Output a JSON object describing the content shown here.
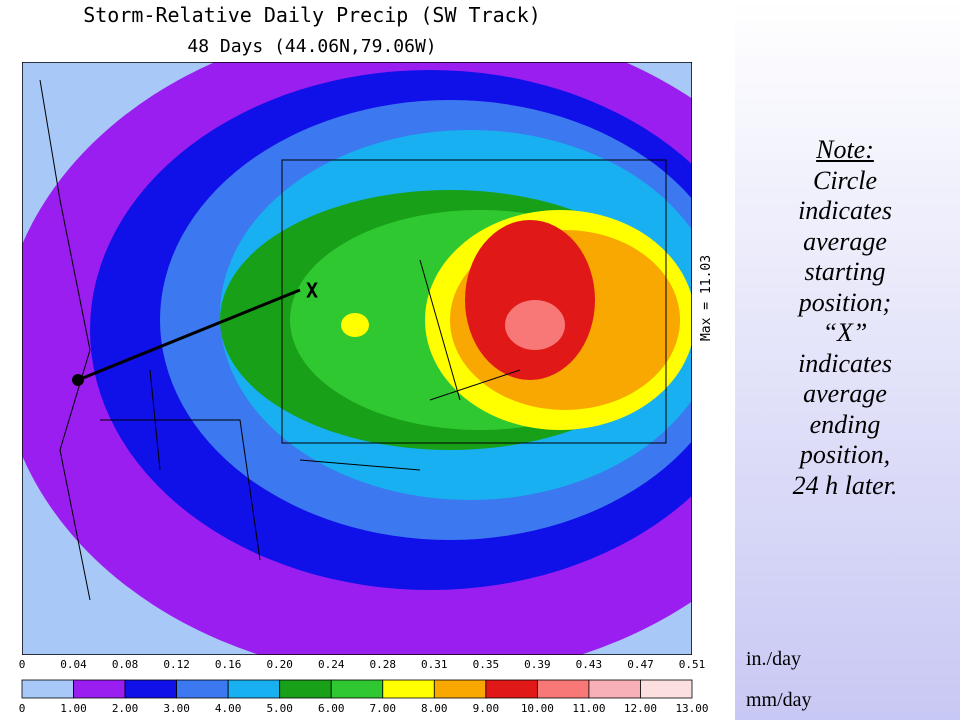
{
  "title": "Storm-Relative Daily Precip (SW Track)",
  "subtitle": "48 Days (44.06N,79.06W)",
  "max_label": "Max =  11.03",
  "end_marker": "X",
  "note": {
    "heading": "Note:",
    "lines": [
      "Circle",
      "indicates",
      "average",
      "starting",
      "position;",
      "“X”",
      "indicates",
      "average",
      "ending",
      "position,",
      "24 h later."
    ]
  },
  "legend": {
    "inch_unit": "in./day",
    "mm_unit": "mm/day",
    "inch_labels": [
      "0",
      "0.04",
      "0.08",
      "0.12",
      "0.16",
      "0.20",
      "0.24",
      "0.28",
      "0.31",
      "0.35",
      "0.39",
      "0.43",
      "0.47",
      "0.51"
    ],
    "mm_labels": [
      "0",
      "1.00",
      "2.00",
      "3.00",
      "4.00",
      "5.00",
      "6.00",
      "7.00",
      "8.00",
      "9.00",
      "10.00",
      "11.00",
      "12.00",
      "13.00"
    ],
    "colors": [
      "#a8c8f8",
      "#9a1ef0",
      "#1010e8",
      "#3c78f0",
      "#18b0f0",
      "#18a018",
      "#30c830",
      "#ffff00",
      "#f8a800",
      "#e01818",
      "#f87878",
      "#f8b0b8",
      "#fce0e0"
    ]
  }
}
